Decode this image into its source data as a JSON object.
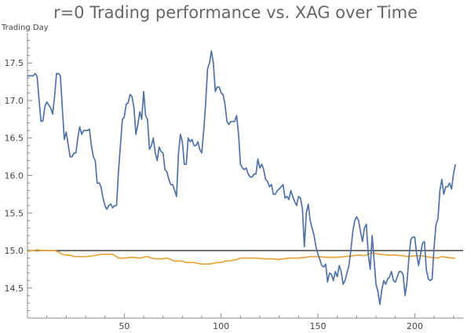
{
  "chart_data": {
    "type": "line",
    "title": "r=0 Trading performance vs. XAG over Time",
    "xlabel": "",
    "ylabel": "Trading Day",
    "xlim": [
      0,
      225
    ],
    "ylim": [
      14.1,
      17.9
    ],
    "x_ticks": [
      50,
      100,
      150,
      200
    ],
    "y_ticks": [
      14.5,
      15.0,
      15.5,
      16.0,
      16.5,
      17.0,
      17.5
    ],
    "reference_line": {
      "y": 15.0,
      "color": "#333333"
    },
    "series": [
      {
        "color": "#5072a7",
        "points": [
          [
            0,
            17.33
          ],
          [
            3,
            17.33
          ],
          [
            4,
            17.36
          ],
          [
            5,
            17.32
          ],
          [
            6,
            17.0
          ],
          [
            7,
            16.72
          ],
          [
            8,
            16.73
          ],
          [
            9,
            16.92
          ],
          [
            10,
            16.98
          ],
          [
            12,
            16.9
          ],
          [
            13,
            16.82
          ],
          [
            14,
            17.05
          ],
          [
            15,
            17.36
          ],
          [
            16,
            17.36
          ],
          [
            17,
            17.33
          ],
          [
            18,
            16.9
          ],
          [
            19,
            16.48
          ],
          [
            20,
            16.58
          ],
          [
            22,
            16.25
          ],
          [
            23,
            16.25
          ],
          [
            24,
            16.3
          ],
          [
            25,
            16.3
          ],
          [
            26,
            16.5
          ],
          [
            27,
            16.65
          ],
          [
            28,
            16.55
          ],
          [
            29,
            16.6
          ],
          [
            30,
            16.6
          ],
          [
            31,
            16.6
          ],
          [
            32,
            16.62
          ],
          [
            33,
            16.4
          ],
          [
            34,
            16.25
          ],
          [
            35,
            16.2
          ],
          [
            36,
            15.9
          ],
          [
            37,
            15.9
          ],
          [
            38,
            15.85
          ],
          [
            39,
            15.7
          ],
          [
            40,
            15.6
          ],
          [
            41,
            15.55
          ],
          [
            42,
            15.6
          ],
          [
            43,
            15.62
          ],
          [
            44,
            15.57
          ],
          [
            45,
            15.6
          ],
          [
            46,
            15.6
          ],
          [
            47,
            16.05
          ],
          [
            48,
            16.4
          ],
          [
            49,
            16.75
          ],
          [
            50,
            16.78
          ],
          [
            51,
            16.95
          ],
          [
            52,
            16.97
          ],
          [
            53,
            17.08
          ],
          [
            54,
            17.05
          ],
          [
            55,
            16.9
          ],
          [
            56,
            16.55
          ],
          [
            57,
            16.68
          ],
          [
            58,
            16.85
          ],
          [
            59,
            16.75
          ],
          [
            60,
            17.12
          ],
          [
            61,
            16.8
          ],
          [
            62,
            16.75
          ],
          [
            63,
            16.35
          ],
          [
            64,
            16.4
          ],
          [
            65,
            16.5
          ],
          [
            66,
            16.3
          ],
          [
            67,
            16.2
          ],
          [
            68,
            16.38
          ],
          [
            69,
            16.32
          ],
          [
            70,
            16.3
          ],
          [
            71,
            16.08
          ],
          [
            72,
            16.05
          ],
          [
            73,
            15.95
          ],
          [
            74,
            15.88
          ],
          [
            75,
            15.88
          ],
          [
            76,
            15.8
          ],
          [
            77,
            15.72
          ],
          [
            78,
            16.3
          ],
          [
            79,
            16.55
          ],
          [
            80,
            16.45
          ],
          [
            81,
            16.15
          ],
          [
            82,
            16.15
          ],
          [
            83,
            16.5
          ],
          [
            84,
            16.45
          ],
          [
            85,
            16.48
          ],
          [
            86,
            16.4
          ],
          [
            87,
            16.4
          ],
          [
            88,
            16.45
          ],
          [
            89,
            16.35
          ],
          [
            90,
            16.3
          ],
          [
            91,
            16.6
          ],
          [
            92,
            16.95
          ],
          [
            93,
            17.42
          ],
          [
            94,
            17.5
          ],
          [
            95,
            17.66
          ],
          [
            96,
            17.5
          ],
          [
            97,
            17.12
          ],
          [
            98,
            17.18
          ],
          [
            99,
            17.18
          ],
          [
            100,
            17.1
          ],
          [
            101,
            17.08
          ],
          [
            102,
            16.95
          ],
          [
            103,
            16.72
          ],
          [
            104,
            16.68
          ],
          [
            105,
            16.72
          ],
          [
            106,
            16.72
          ],
          [
            107,
            16.72
          ],
          [
            108,
            16.8
          ],
          [
            109,
            16.55
          ],
          [
            110,
            16.15
          ],
          [
            111,
            16.1
          ],
          [
            112,
            16.08
          ],
          [
            113,
            16.1
          ],
          [
            114,
            16.02
          ],
          [
            115,
            15.98
          ],
          [
            116,
            15.98
          ],
          [
            117,
            16.02
          ],
          [
            118,
            16.02
          ],
          [
            119,
            16.22
          ],
          [
            120,
            16.1
          ],
          [
            121,
            16.15
          ],
          [
            122,
            16.08
          ],
          [
            123,
            15.95
          ],
          [
            124,
            15.92
          ],
          [
            125,
            15.85
          ],
          [
            126,
            15.88
          ],
          [
            127,
            15.75
          ],
          [
            128,
            15.75
          ],
          [
            129,
            15.8
          ],
          [
            130,
            15.82
          ],
          [
            131,
            15.85
          ],
          [
            132,
            15.88
          ],
          [
            133,
            15.7
          ],
          [
            134,
            15.72
          ],
          [
            135,
            15.68
          ],
          [
            136,
            15.8
          ],
          [
            137,
            15.72
          ],
          [
            138,
            15.65
          ],
          [
            139,
            15.6
          ],
          [
            140,
            15.72
          ],
          [
            141,
            15.7
          ],
          [
            142,
            15.55
          ],
          [
            143,
            15.05
          ],
          [
            144,
            15.5
          ],
          [
            145,
            15.62
          ],
          [
            146,
            15.4
          ],
          [
            147,
            15.3
          ],
          [
            148,
            15.2
          ],
          [
            149,
            15.05
          ],
          [
            150,
            14.95
          ],
          [
            151,
            14.88
          ],
          [
            152,
            14.8
          ],
          [
            153,
            14.78
          ],
          [
            154,
            14.82
          ],
          [
            155,
            14.58
          ],
          [
            156,
            14.7
          ],
          [
            157,
            14.68
          ],
          [
            158,
            14.6
          ],
          [
            159,
            14.72
          ],
          [
            160,
            14.65
          ],
          [
            161,
            14.8
          ],
          [
            162,
            14.72
          ],
          [
            163,
            14.55
          ],
          [
            164,
            14.6
          ],
          [
            165,
            14.7
          ],
          [
            166,
            14.8
          ],
          [
            167,
            15.0
          ],
          [
            168,
            15.25
          ],
          [
            169,
            15.4
          ],
          [
            170,
            15.45
          ],
          [
            171,
            15.4
          ],
          [
            172,
            15.25
          ],
          [
            173,
            15.12
          ],
          [
            174,
            15.3
          ],
          [
            175,
            15.35
          ],
          [
            176,
            14.95
          ],
          [
            177,
            14.75
          ],
          [
            178,
            15.2
          ],
          [
            179,
            14.88
          ],
          [
            180,
            14.55
          ],
          [
            181,
            14.45
          ],
          [
            182,
            14.28
          ],
          [
            183,
            14.48
          ],
          [
            184,
            14.6
          ],
          [
            185,
            14.55
          ],
          [
            186,
            14.62
          ],
          [
            187,
            14.65
          ],
          [
            188,
            14.72
          ],
          [
            189,
            14.6
          ],
          [
            190,
            14.58
          ],
          [
            191,
            14.65
          ],
          [
            192,
            14.72
          ],
          [
            193,
            14.72
          ],
          [
            194,
            14.68
          ],
          [
            195,
            14.4
          ],
          [
            196,
            14.58
          ],
          [
            197,
            14.9
          ],
          [
            198,
            15.15
          ],
          [
            199,
            15.18
          ],
          [
            200,
            15.18
          ],
          [
            201,
            14.95
          ],
          [
            202,
            14.8
          ],
          [
            203,
            14.95
          ],
          [
            204,
            15.1
          ],
          [
            205,
            15.12
          ],
          [
            206,
            14.75
          ],
          [
            207,
            14.62
          ],
          [
            208,
            14.6
          ],
          [
            209,
            14.62
          ],
          [
            210,
            15.05
          ],
          [
            211,
            15.35
          ],
          [
            212,
            15.42
          ],
          [
            213,
            15.8
          ],
          [
            214,
            15.95
          ],
          [
            215,
            15.75
          ],
          [
            216,
            15.85
          ],
          [
            217,
            15.85
          ],
          [
            218,
            15.9
          ],
          [
            219,
            15.82
          ],
          [
            220,
            16.02
          ],
          [
            221,
            16.15
          ]
        ]
      },
      {
        "color": "#e8a33a",
        "points": [
          [
            0,
            14.99
          ],
          [
            3,
            15.0
          ],
          [
            5,
            15.01
          ],
          [
            8,
            15.0
          ],
          [
            12,
            15.0
          ],
          [
            14,
            15.0
          ],
          [
            16,
            14.98
          ],
          [
            18,
            14.95
          ],
          [
            20,
            14.94
          ],
          [
            22,
            14.94
          ],
          [
            24,
            14.92
          ],
          [
            26,
            14.92
          ],
          [
            30,
            14.92
          ],
          [
            34,
            14.93
          ],
          [
            36,
            14.94
          ],
          [
            38,
            14.95
          ],
          [
            40,
            14.95
          ],
          [
            44,
            14.95
          ],
          [
            46,
            14.92
          ],
          [
            47,
            14.9
          ],
          [
            50,
            14.9
          ],
          [
            54,
            14.91
          ],
          [
            58,
            14.9
          ],
          [
            60,
            14.91
          ],
          [
            62,
            14.92
          ],
          [
            64,
            14.9
          ],
          [
            66,
            14.89
          ],
          [
            70,
            14.89
          ],
          [
            72,
            14.9
          ],
          [
            74,
            14.88
          ],
          [
            76,
            14.86
          ],
          [
            80,
            14.86
          ],
          [
            82,
            14.84
          ],
          [
            86,
            14.84
          ],
          [
            88,
            14.83
          ],
          [
            90,
            14.82
          ],
          [
            94,
            14.82
          ],
          [
            96,
            14.83
          ],
          [
            98,
            14.84
          ],
          [
            100,
            14.84
          ],
          [
            102,
            14.86
          ],
          [
            104,
            14.86
          ],
          [
            106,
            14.87
          ],
          [
            108,
            14.88
          ],
          [
            110,
            14.9
          ],
          [
            114,
            14.9
          ],
          [
            118,
            14.9
          ],
          [
            122,
            14.89
          ],
          [
            126,
            14.89
          ],
          [
            130,
            14.88
          ],
          [
            132,
            14.89
          ],
          [
            136,
            14.9
          ],
          [
            140,
            14.9
          ],
          [
            144,
            14.91
          ],
          [
            146,
            14.92
          ],
          [
            150,
            14.92
          ],
          [
            154,
            14.91
          ],
          [
            160,
            14.91
          ],
          [
            164,
            14.92
          ],
          [
            168,
            14.93
          ],
          [
            170,
            14.94
          ],
          [
            172,
            14.94
          ],
          [
            174,
            14.93
          ],
          [
            176,
            14.95
          ],
          [
            178,
            14.97
          ],
          [
            180,
            14.96
          ],
          [
            182,
            14.95
          ],
          [
            186,
            14.94
          ],
          [
            190,
            14.94
          ],
          [
            194,
            14.93
          ],
          [
            196,
            14.92
          ],
          [
            200,
            14.93
          ],
          [
            204,
            14.93
          ],
          [
            206,
            14.92
          ],
          [
            208,
            14.91
          ],
          [
            212,
            14.9
          ],
          [
            214,
            14.92
          ],
          [
            216,
            14.91
          ],
          [
            220,
            14.9
          ],
          [
            221,
            14.9
          ]
        ]
      }
    ],
    "grid": false,
    "legend": "none"
  }
}
